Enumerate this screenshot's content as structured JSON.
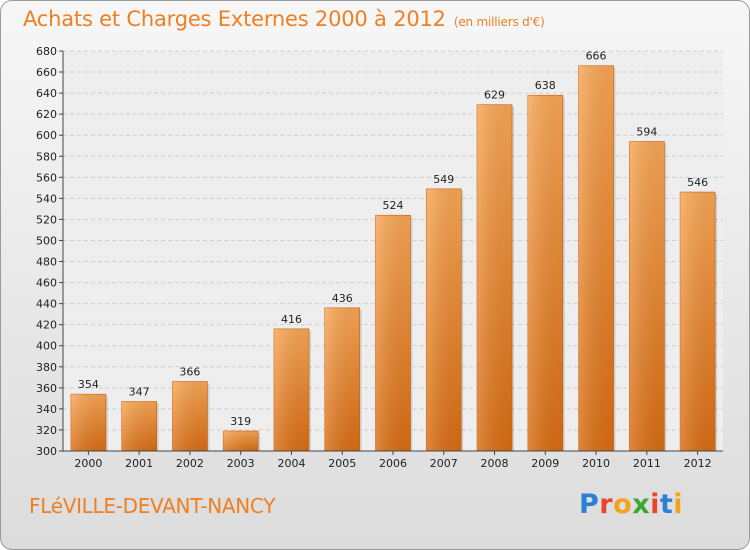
{
  "header": {
    "title": "Achats et Charges Externes 2000 à 2012",
    "subtitle": "(en milliers d'€)"
  },
  "footer": {
    "place": "FLéVILLE-DEVANT-NANCY",
    "brand_letters": [
      "P",
      "r",
      "o",
      "x",
      "i",
      "t",
      "i"
    ],
    "brand_colors": [
      "#2b7fd4",
      "#e8452c",
      "#f2a31b",
      "#3aa836",
      "#e8452c",
      "#2b7fd4",
      "#f2a31b"
    ]
  },
  "chart_data": {
    "type": "bar",
    "categories": [
      "2000",
      "2001",
      "2002",
      "2003",
      "2004",
      "2005",
      "2006",
      "2007",
      "2008",
      "2009",
      "2010",
      "2011",
      "2012"
    ],
    "values": [
      354,
      347,
      366,
      319,
      416,
      436,
      524,
      549,
      629,
      638,
      666,
      594,
      546
    ],
    "title": "Achats et Charges Externes 2000 à 2012",
    "subtitle": "(en milliers d'€)",
    "ylim": [
      300,
      680
    ],
    "yticks": [
      300,
      320,
      340,
      360,
      380,
      400,
      420,
      440,
      460,
      480,
      500,
      520,
      540,
      560,
      580,
      600,
      620,
      640,
      660,
      680
    ],
    "grid": true,
    "bar_color": "#f0913a"
  }
}
